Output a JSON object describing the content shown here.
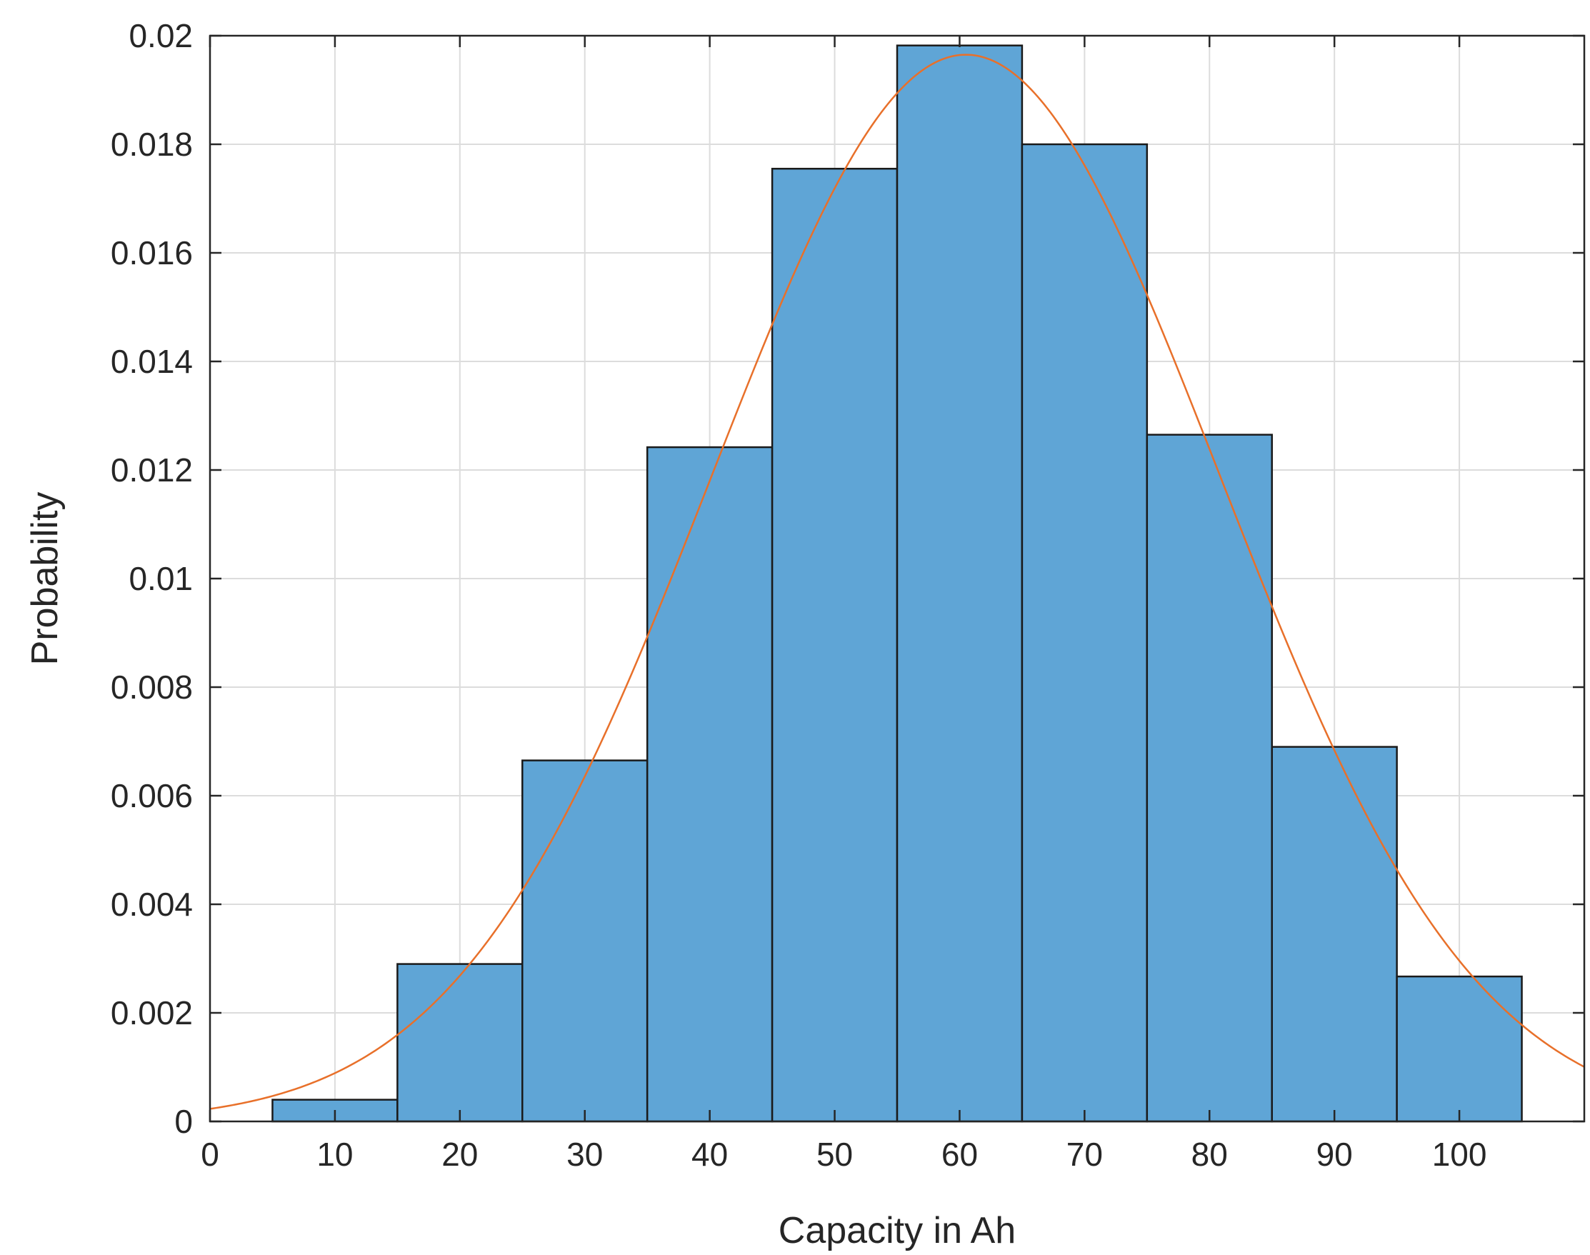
{
  "chart_data": {
    "type": "bar",
    "subtype": "histogram",
    "xlabel": "Capacity in Ah",
    "ylabel": "Probability",
    "xlim": [
      0,
      110
    ],
    "ylim": [
      0,
      0.02
    ],
    "xticks": [
      "0",
      "10",
      "20",
      "30",
      "40",
      "50",
      "60",
      "70",
      "80",
      "90",
      "100"
    ],
    "yticks": [
      "0",
      "0.002",
      "0.004",
      "0.006",
      "0.008",
      "0.01",
      "0.012",
      "0.014",
      "0.016",
      "0.018",
      "0.02"
    ],
    "grid": true,
    "bin_width": 10,
    "bin_edges": [
      5,
      15,
      25,
      35,
      45,
      55,
      65,
      75,
      85,
      95,
      105
    ],
    "values": [
      0.0004,
      0.0029,
      0.00665,
      0.01242,
      0.01755,
      0.01982,
      0.018,
      0.01265,
      0.0069,
      0.00267
    ],
    "bar_color": "#5fa5d6",
    "fit": {
      "type": "normal",
      "mean": 60.5,
      "peak": 0.01965,
      "sigma": 20.3,
      "color": "#e8702a"
    }
  }
}
